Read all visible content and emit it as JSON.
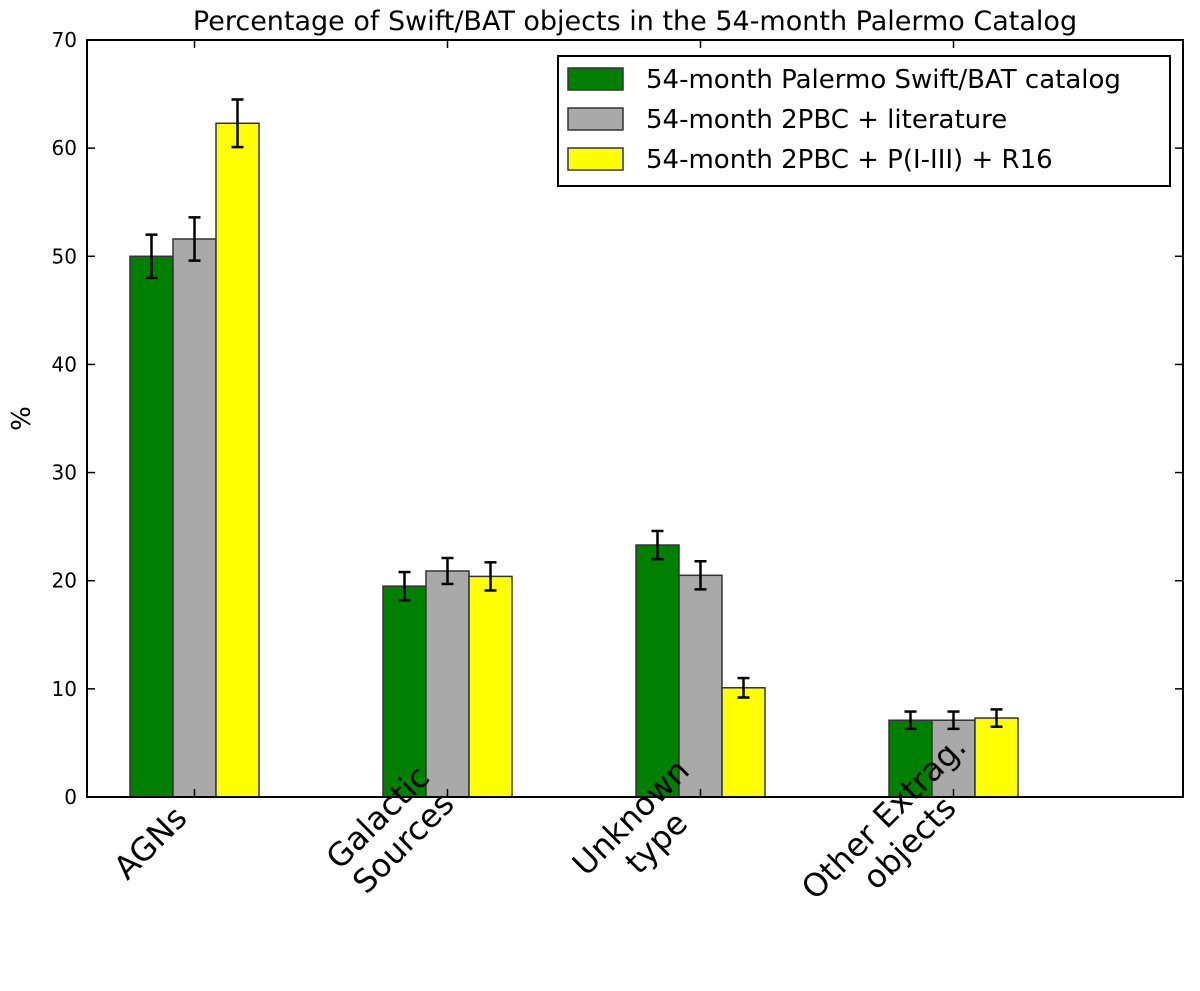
{
  "chart_data": {
    "type": "bar",
    "title": "Percentage of Swift/BAT objects in the 54-month Palermo Catalog",
    "ylabel": "%",
    "xlabel": "",
    "ylim": [
      0,
      70
    ],
    "yticks": [
      0,
      10,
      20,
      30,
      40,
      50,
      60,
      70
    ],
    "grid": false,
    "legend_position": "top-right",
    "categories": [
      [
        "AGNs"
      ],
      [
        "Galactic",
        "Sources"
      ],
      [
        "Unknown",
        "type"
      ],
      [
        "Other Extrag.",
        "objects"
      ]
    ],
    "series": [
      {
        "name": "54-month Palermo Swift/BAT catalog",
        "color": "#008000",
        "values": [
          50.0,
          19.5,
          23.3,
          7.1
        ],
        "errors": [
          2.0,
          1.3,
          1.3,
          0.8
        ]
      },
      {
        "name": "54-month 2PBC + literature",
        "color": "#a9a9a9",
        "values": [
          51.6,
          20.9,
          20.5,
          7.1
        ],
        "errors": [
          2.0,
          1.2,
          1.3,
          0.8
        ]
      },
      {
        "name": "54-month 2PBC + P(I-III) + R16",
        "color": "#ffff00",
        "values": [
          62.3,
          20.4,
          10.1,
          7.3
        ],
        "errors": [
          2.2,
          1.3,
          0.9,
          0.8
        ]
      }
    ]
  }
}
